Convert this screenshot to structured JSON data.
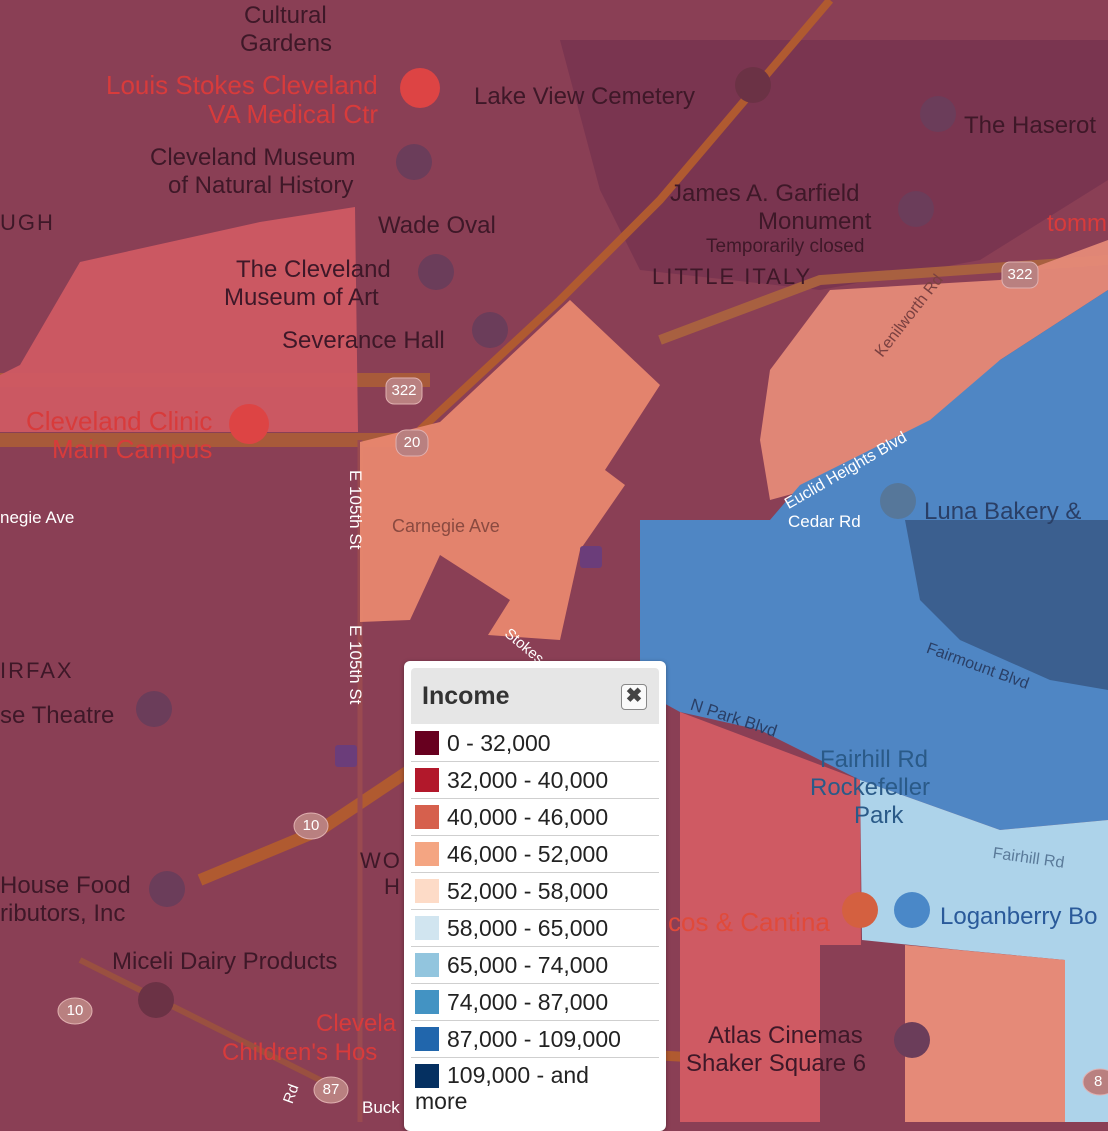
{
  "legend": {
    "title": "Income",
    "close_icon": "close-icon",
    "items": [
      {
        "label": "0 - 32,000",
        "color": "#67001f"
      },
      {
        "label": "32,000 - 40,000",
        "color": "#b2182b"
      },
      {
        "label": "40,000 - 46,000",
        "color": "#d6604d"
      },
      {
        "label": "46,000 - 52,000",
        "color": "#f4a582"
      },
      {
        "label": "52,000 - 58,000",
        "color": "#fddbc7"
      },
      {
        "label": "58,000 - 65,000",
        "color": "#d1e5f0"
      },
      {
        "label": "65,000 - 74,000",
        "color": "#92c5de"
      },
      {
        "label": "74,000 - 87,000",
        "color": "#4393c3"
      },
      {
        "label": "87,000 - 109,000",
        "color": "#2166ac"
      },
      {
        "label_line1": "109,000 - and",
        "label_line2": "more",
        "color": "#053061"
      }
    ]
  },
  "places": {
    "cultural_gardens_1": "Cultural",
    "cultural_gardens_2": "Gardens",
    "va_1": "Louis Stokes Cleveland",
    "va_2": "VA Medical Ctr",
    "lake_view": "Lake View Cemetery",
    "haserot": "The Haserot",
    "museum_nh_1": "Cleveland Museum",
    "museum_nh_2": "of Natural History",
    "garfield_1": "James A. Garfield",
    "garfield_2": "Monument",
    "garfield_3": "Temporarily closed",
    "tomm": "tomm",
    "ugh": "UGH",
    "wade_oval": "Wade Oval",
    "art_1": "The Cleveland",
    "art_2": "Museum of Art",
    "little_italy": "LITTLE ITALY",
    "severance": "Severance Hall",
    "clinic_1": "Cleveland Clinic",
    "clinic_2": "Main Campus",
    "kenilworth": "Kenilworth Rd",
    "euclid_heights": "Euclid Heights Blvd",
    "luna": "Luna Bakery &",
    "cedar": "Cedar Rd",
    "carnegie_left": "negie Ave",
    "carnegie": "Carnegie Ave",
    "e105_1": "E 105th St",
    "e105_2": "E 105th St",
    "stokes": "Stokes",
    "fairmount": "Fairmount Blvd",
    "fairfax": "IRFAX",
    "theatre": "se Theatre",
    "n_park": "N Park Blvd",
    "fairhill_rd_label": "Fairhill Rd",
    "rockefeller_1": "Rockefeller",
    "rockefeller_2": "Park",
    "fairhill_road": "Fairhill Rd",
    "house_food_1": "House Food",
    "house_food_2": "ributors, Inc",
    "wo_1": "WO",
    "wo_2": "H",
    "tacos": "cos & Cantina",
    "loganberry": "Loganberry Bo",
    "miceli": "Miceli Dairy Products",
    "childrens_1": "Clevela",
    "childrens_2": "Children's Hos",
    "atlas_1": "Atlas Cinemas",
    "atlas_2": "Shaker Square 6",
    "buck": "Buck",
    "rd": "Rd"
  },
  "shields": {
    "us322_a": "322",
    "us322_b": "322",
    "us20": "20",
    "sr10_a": "10",
    "sr10_b": "10",
    "sr87": "87",
    "edge_8": "8"
  }
}
